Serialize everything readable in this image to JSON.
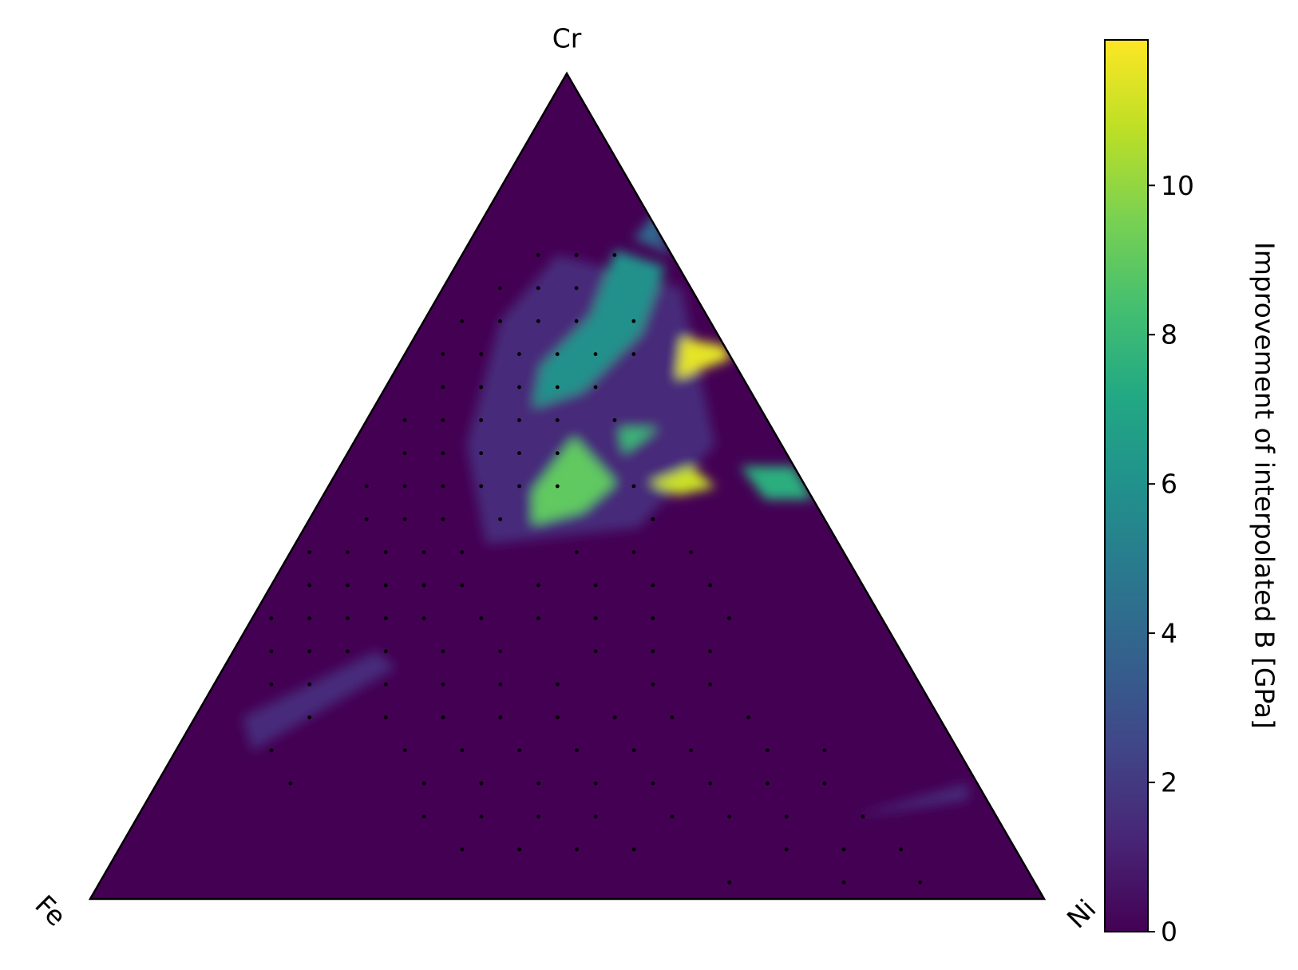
{
  "chart_data": {
    "type": "ternary_heatmap",
    "vertex_labels": {
      "top": "Cr",
      "left": "Fe",
      "right": "Ni"
    },
    "colorbar_label": "Improvement of interpolated B [GPa]",
    "colormap": "viridis",
    "clim": [
      0,
      11.95
    ],
    "cticks": [
      0,
      2,
      4,
      6,
      8,
      10
    ],
    "background_value": 0,
    "patches": [
      {
        "points": [
          [
            10,
            78
          ],
          [
            25,
            74
          ],
          [
            38,
            55
          ],
          [
            35,
            45
          ],
          [
            20,
            43
          ],
          [
            12,
            55
          ],
          [
            8,
            70
          ]
        ],
        "value": 1.5
      },
      {
        "points": [
          [
            5,
            22
          ],
          [
            15,
            30
          ],
          [
            18,
            28
          ],
          [
            8,
            18
          ]
        ],
        "value": 1.5
      },
      {
        "points": [
          [
            75,
            10
          ],
          [
            85,
            14
          ],
          [
            86,
            12
          ]
        ],
        "value": 1.5
      },
      {
        "points": [
          [
            15.8,
            78.6
          ],
          [
            22,
            76.6
          ],
          [
            23.5,
            68.5
          ],
          [
            20.9,
            61.5
          ],
          [
            16.7,
            59.5
          ],
          [
            15,
            64.5
          ],
          [
            17.2,
            70.6
          ]
        ],
        "value": 6
      },
      {
        "points": [
          [
            18,
            84
          ],
          [
            20,
            80
          ],
          [
            22,
            78
          ],
          [
            17,
            80
          ]
        ],
        "value": 4
      },
      {
        "points": [
          [
            21.7,
            49.4
          ],
          [
            22.8,
            55.9
          ],
          [
            29.9,
            50.4
          ],
          [
            28.2,
            46.9
          ],
          [
            23.7,
            45.4
          ]
        ],
        "value": 9
      },
      {
        "points": [
          [
            42,
            52.4
          ],
          [
            47.6,
            52.4
          ],
          [
            51.6,
            48.4
          ],
          [
            46.6,
            48.4
          ]
        ],
        "value": 7.5
      },
      {
        "points": [
          [
            27,
            57
          ],
          [
            31,
            57
          ],
          [
            29,
            54
          ]
        ],
        "value": 8
      },
      {
        "points": [
          [
            28,
            68
          ],
          [
            33,
            67
          ],
          [
            34.5,
            65.5
          ],
          [
            30,
            63
          ]
        ],
        "value": 11.5
      },
      {
        "points": [
          [
            33.4,
            50.4
          ],
          [
            36.8,
            52.4
          ],
          [
            40.6,
            49.9
          ],
          [
            37.2,
            48.9
          ]
        ],
        "value": 11
      }
    ],
    "samples": [
      [
        8,
        78
      ],
      [
        12,
        78
      ],
      [
        16,
        78
      ],
      [
        6,
        74
      ],
      [
        10,
        74
      ],
      [
        14,
        74
      ],
      [
        4,
        70
      ],
      [
        8,
        70
      ],
      [
        12,
        70
      ],
      [
        16,
        70
      ],
      [
        22,
        70
      ],
      [
        4,
        66
      ],
      [
        8,
        66
      ],
      [
        12,
        66
      ],
      [
        16,
        66
      ],
      [
        20,
        66
      ],
      [
        24,
        66
      ],
      [
        6,
        62
      ],
      [
        10,
        62
      ],
      [
        14,
        62
      ],
      [
        18,
        62
      ],
      [
        22,
        62
      ],
      [
        4,
        58
      ],
      [
        8,
        58
      ],
      [
        12,
        58
      ],
      [
        16,
        58
      ],
      [
        20,
        58
      ],
      [
        26,
        58
      ],
      [
        6,
        54
      ],
      [
        10,
        54
      ],
      [
        14,
        54
      ],
      [
        18,
        54
      ],
      [
        22,
        54
      ],
      [
        4,
        50
      ],
      [
        8,
        50
      ],
      [
        12,
        50
      ],
      [
        16,
        50
      ],
      [
        20,
        50
      ],
      [
        24,
        50
      ],
      [
        32,
        50
      ],
      [
        6,
        46
      ],
      [
        10,
        46
      ],
      [
        14,
        46
      ],
      [
        20,
        46
      ],
      [
        36,
        46
      ],
      [
        2,
        42
      ],
      [
        6,
        42
      ],
      [
        10,
        42
      ],
      [
        14,
        42
      ],
      [
        18,
        42
      ],
      [
        30,
        42
      ],
      [
        36,
        42
      ],
      [
        42,
        42
      ],
      [
        4,
        38
      ],
      [
        8,
        38
      ],
      [
        12,
        38
      ],
      [
        16,
        38
      ],
      [
        20,
        38
      ],
      [
        28,
        38
      ],
      [
        34,
        38
      ],
      [
        40,
        38
      ],
      [
        46,
        38
      ],
      [
        2,
        34
      ],
      [
        6,
        34
      ],
      [
        10,
        34
      ],
      [
        14,
        34
      ],
      [
        18,
        34
      ],
      [
        24,
        34
      ],
      [
        30,
        34
      ],
      [
        36,
        34
      ],
      [
        42,
        34
      ],
      [
        50,
        34
      ],
      [
        4,
        30
      ],
      [
        8,
        30
      ],
      [
        12,
        30
      ],
      [
        16,
        30
      ],
      [
        22,
        30
      ],
      [
        28,
        30
      ],
      [
        38,
        30
      ],
      [
        44,
        30
      ],
      [
        50,
        30
      ],
      [
        6,
        26
      ],
      [
        10,
        26
      ],
      [
        18,
        26
      ],
      [
        24,
        26
      ],
      [
        30,
        26
      ],
      [
        36,
        26
      ],
      [
        46,
        26
      ],
      [
        52,
        26
      ],
      [
        12,
        22
      ],
      [
        20,
        22
      ],
      [
        26,
        22
      ],
      [
        32,
        22
      ],
      [
        38,
        22
      ],
      [
        44,
        22
      ],
      [
        50,
        22
      ],
      [
        58,
        22
      ],
      [
        10,
        18
      ],
      [
        24,
        18
      ],
      [
        30,
        18
      ],
      [
        36,
        18
      ],
      [
        42,
        18
      ],
      [
        48,
        18
      ],
      [
        54,
        18
      ],
      [
        62,
        18
      ],
      [
        68,
        18
      ],
      [
        14,
        14
      ],
      [
        28,
        14
      ],
      [
        34,
        14
      ],
      [
        40,
        14
      ],
      [
        46,
        14
      ],
      [
        52,
        14
      ],
      [
        58,
        14
      ],
      [
        64,
        14
      ],
      [
        70,
        14
      ],
      [
        30,
        10
      ],
      [
        36,
        10
      ],
      [
        42,
        10
      ],
      [
        48,
        10
      ],
      [
        56,
        10
      ],
      [
        62,
        10
      ],
      [
        68,
        10
      ],
      [
        76,
        10
      ],
      [
        36,
        6
      ],
      [
        42,
        6
      ],
      [
        48,
        6
      ],
      [
        54,
        6
      ],
      [
        70,
        6
      ],
      [
        76,
        6
      ],
      [
        82,
        6
      ],
      [
        66,
        2
      ],
      [
        78,
        2
      ],
      [
        86,
        2
      ]
    ]
  }
}
